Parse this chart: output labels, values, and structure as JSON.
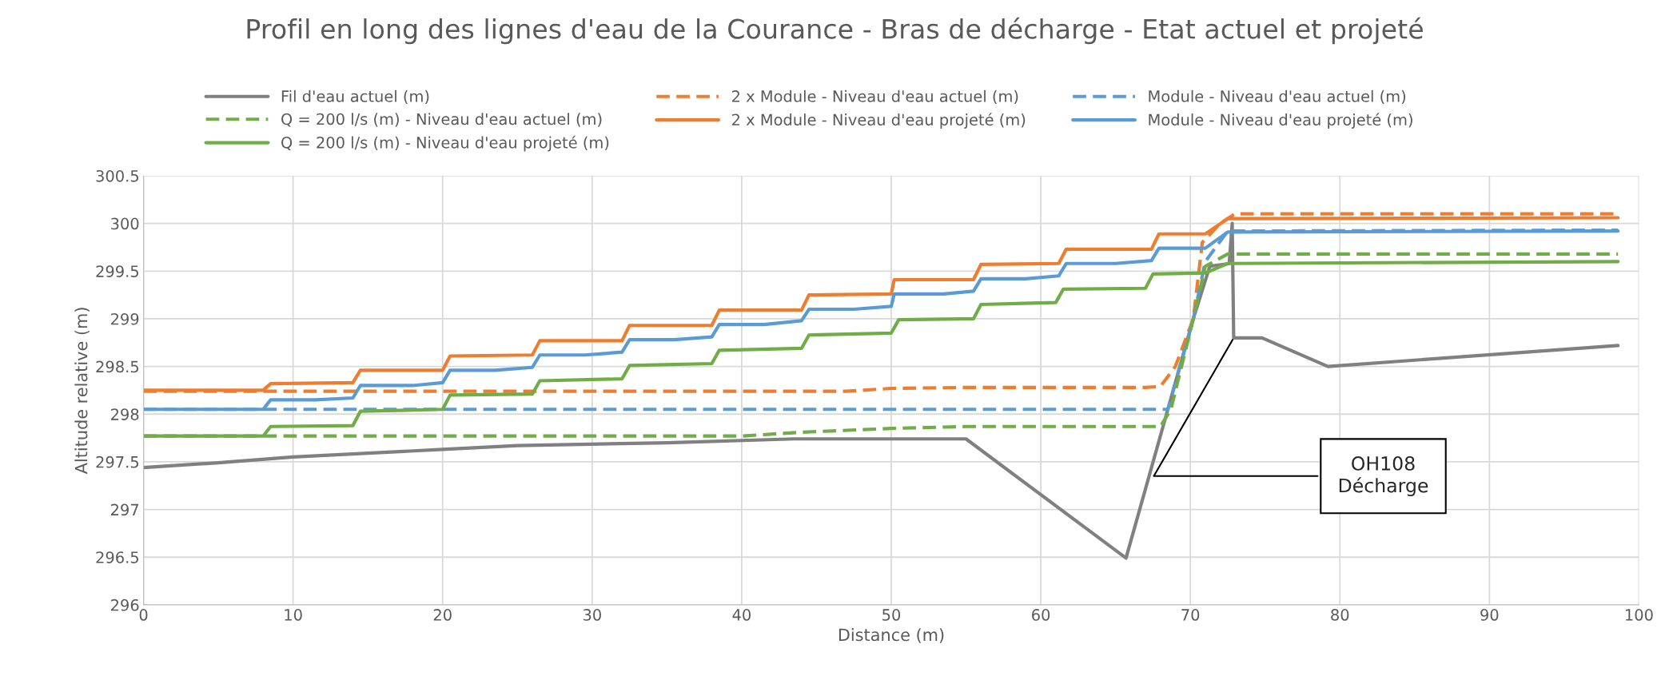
{
  "chart_data": {
    "type": "line",
    "title": "Profil en long des lignes d'eau de la Courance - Bras de décharge - Etat actuel et projeté",
    "xlabel": "Distance (m)",
    "ylabel": "Altitude relative (m)",
    "xlim": [
      0,
      100
    ],
    "xticks": [
      0,
      10,
      20,
      30,
      40,
      50,
      60,
      70,
      80,
      90,
      100
    ],
    "ylim": [
      296,
      300.5
    ],
    "yticks": [
      296,
      296.5,
      297,
      297.5,
      298,
      298.5,
      299,
      299.5,
      300,
      300.5
    ],
    "grid": true,
    "legend": "top",
    "marker": "none",
    "annotations": [
      {
        "text": "OH108\nDécharge",
        "x": 72.9,
        "y": 298.8
      }
    ],
    "series": [
      {
        "name": "Fil d'eau actuel (m)",
        "color": "#808080",
        "line_style": "solid",
        "x": [
          0,
          5,
          10,
          20,
          25,
          35,
          43.5,
          50,
          55,
          65.7,
          70.2,
          71.3,
          72.6,
          72.8,
          72.9,
          74.8,
          79.2,
          98.6
        ],
        "values": [
          297.44,
          297.49,
          297.55,
          297.63,
          297.67,
          297.7,
          297.74,
          297.74,
          297.74,
          296.49,
          299.0,
          299.55,
          299.58,
          300.0,
          298.8,
          298.8,
          298.5,
          298.72
        ]
      },
      {
        "name": "2 x Module - Niveau d'eau actuel (m)",
        "color": "#ed7d31",
        "line_style": "dashed",
        "x": [
          0,
          47,
          50,
          55,
          67,
          68,
          69,
          70.2,
          70.8,
          72,
          73,
          98.6
        ],
        "values": [
          298.24,
          298.24,
          298.27,
          298.28,
          298.28,
          298.29,
          298.5,
          299.0,
          299.8,
          300.0,
          300.1,
          300.1
        ]
      },
      {
        "name": "Module - Niveau d'eau actuel (m)",
        "color": "#5b9bd5",
        "line_style": "dashed",
        "x": [
          0,
          68.5,
          70.2,
          71,
          72.5,
          98.6
        ],
        "values": [
          298.05,
          298.05,
          299.0,
          299.6,
          299.92,
          299.93
        ]
      },
      {
        "name": "Q = 200 l/s (m) - Niveau d'eau actuel (m)",
        "color": "#70ad47",
        "line_style": "dashed",
        "x": [
          0,
          40,
          44,
          50,
          55,
          68,
          68.7,
          70.2,
          71,
          72.5,
          98.6
        ],
        "values": [
          297.77,
          297.77,
          297.81,
          297.85,
          297.87,
          297.87,
          298.05,
          299.0,
          299.55,
          299.68,
          299.68
        ]
      },
      {
        "name": "2 x Module - Niveau d'eau projeté (m)",
        "color": "#ed7d31",
        "line_style": "solid",
        "x": [
          0,
          8,
          8.5,
          14,
          14.5,
          20,
          20.5,
          26,
          26.5,
          32,
          32.5,
          38,
          38.5,
          44,
          44.5,
          50,
          50.2,
          55.5,
          56,
          61.2,
          61.7,
          67.4,
          67.9,
          71,
          72.5,
          98.6
        ],
        "values": [
          298.25,
          298.25,
          298.32,
          298.33,
          298.46,
          298.46,
          298.61,
          298.62,
          298.77,
          298.77,
          298.93,
          298.93,
          299.09,
          299.09,
          299.25,
          299.26,
          299.41,
          299.41,
          299.57,
          299.58,
          299.73,
          299.73,
          299.89,
          299.89,
          300.05,
          300.06
        ]
      },
      {
        "name": "Module - Niveau d'eau projeté (m)",
        "color": "#5b9bd5",
        "line_style": "solid",
        "x": [
          0,
          8,
          8.5,
          11.5,
          14,
          14.5,
          18,
          20,
          20.5,
          23.5,
          26,
          26.5,
          29.5,
          32,
          32.5,
          35.5,
          38,
          38.5,
          41.5,
          44,
          44.5,
          47.5,
          50,
          50.2,
          53.5,
          55.5,
          56,
          59,
          61.2,
          61.7,
          65,
          67.4,
          67.9,
          71,
          72.5,
          98.6
        ],
        "values": [
          298.05,
          298.05,
          298.15,
          298.15,
          298.17,
          298.3,
          298.3,
          298.33,
          298.46,
          298.46,
          298.49,
          298.62,
          298.62,
          298.65,
          298.78,
          298.78,
          298.81,
          298.94,
          298.94,
          298.98,
          299.1,
          299.1,
          299.13,
          299.26,
          299.26,
          299.29,
          299.42,
          299.42,
          299.45,
          299.58,
          299.58,
          299.61,
          299.74,
          299.74,
          299.91,
          299.92
        ]
      },
      {
        "name": "Q = 200 l/s (m) - Niveau d'eau projeté (m)",
        "color": "#70ad47",
        "line_style": "solid",
        "x": [
          0,
          8,
          8.5,
          14,
          14.5,
          20,
          20.5,
          26,
          26.5,
          32,
          32.5,
          38,
          38.5,
          44,
          44.5,
          50,
          50.5,
          55.5,
          56,
          61,
          61.5,
          67,
          67.5,
          71,
          72.5,
          98.6
        ],
        "values": [
          297.77,
          297.77,
          297.87,
          297.88,
          298.03,
          298.05,
          298.2,
          298.21,
          298.35,
          298.37,
          298.51,
          298.53,
          298.67,
          298.69,
          298.83,
          298.85,
          298.99,
          299.0,
          299.15,
          299.17,
          299.31,
          299.32,
          299.47,
          299.48,
          299.58,
          299.6
        ]
      }
    ]
  }
}
